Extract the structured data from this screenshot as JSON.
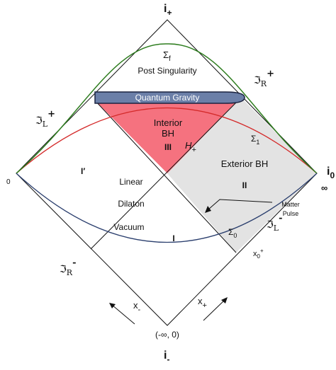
{
  "labels": {
    "i_plus": "i",
    "i_plus_sub": "+",
    "i_minus": "i",
    "i_minus_sub": "-",
    "i_zero": "i",
    "i_zero_sub": "0",
    "scri_R_plus": "ℑ",
    "scri_R_plus_sub": "R",
    "scri_R_plus_sup": "+",
    "scri_L_plus": "ℑ",
    "scri_L_plus_sub": "L",
    "scri_L_plus_sup": "+",
    "scri_R_minus": "ℑ",
    "scri_R_minus_sub": "R",
    "scri_R_minus_sup": "-",
    "scri_L_minus": "ℑ",
    "scri_L_minus_sub": "L",
    "scri_L_minus_sup": "-",
    "sigma_f": "Σ",
    "sigma_f_sub": "f",
    "post_singularity": "Post Singularity",
    "quantum_gravity": "Quantum Gravity",
    "interior": "Interior",
    "bh": "BH",
    "region_iii": "III",
    "horizon": "H",
    "horizon_sub": "+",
    "sigma_1": "Σ",
    "sigma_1_sub": "1",
    "exterior_bh": "Exterior BH",
    "region_ii": "II",
    "region_i_prime": "I′",
    "region_i": "I",
    "linear": "Linear",
    "dilaton": "Dilaton",
    "vacuum": "Vacuum",
    "matter": "Matter",
    "pulse": "Pulse",
    "sigma_0": "Σ",
    "sigma_0_sub": "0",
    "x0_plus": "x",
    "x0_plus_sub": "0",
    "x0_plus_sup": "+",
    "x_minus": "x",
    "x_minus_sub": "-",
    "x_plus": "x",
    "x_plus_sub": "+",
    "origin": "(-∞, 0)",
    "zero": "0",
    "infinity": "∞"
  },
  "colors": {
    "interior_fill": "#f5727f",
    "exterior_fill": "#e3e3e3",
    "quantum_gravity_fill": "#6b7fa8",
    "green_curve": "#2e7d1f",
    "red_curve": "#d42a2a",
    "blue_curve": "#2b3f6e"
  }
}
